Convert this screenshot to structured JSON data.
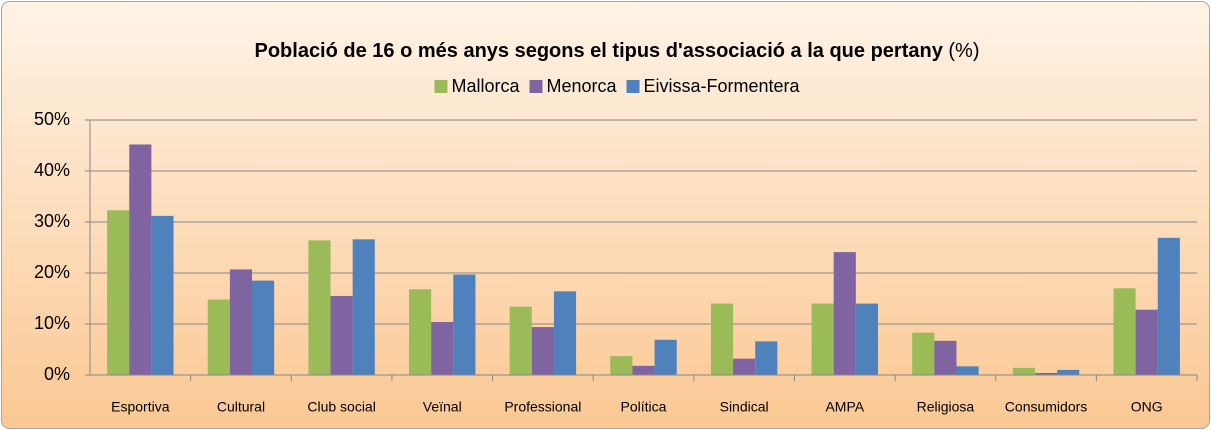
{
  "chart_data": {
    "type": "bar",
    "title": "Població de 16 o més anys segons el tipus d'associació a la que pertany",
    "title_unit": "(%)",
    "categories": [
      "Esportiva",
      "Cultural",
      "Club social",
      "Veïnal",
      "Professional",
      "Política",
      "Sindical",
      "AMPA",
      "Religiosa",
      "Consumidors",
      "ONG"
    ],
    "series": [
      {
        "name": "Mallorca",
        "color": "#9bbb59",
        "values": [
          32.3,
          14.8,
          26.4,
          16.8,
          13.4,
          3.7,
          14.0,
          14.0,
          8.3,
          1.4,
          17.0
        ]
      },
      {
        "name": "Menorca",
        "color": "#8064a2",
        "values": [
          45.2,
          20.7,
          15.5,
          10.4,
          9.4,
          1.8,
          3.2,
          24.1,
          6.7,
          0.4,
          12.8
        ]
      },
      {
        "name": "Eivissa-Formentera",
        "color": "#4f81bd",
        "values": [
          31.2,
          18.5,
          26.6,
          19.7,
          16.4,
          6.9,
          6.6,
          14.0,
          1.7,
          1.0,
          26.9
        ]
      }
    ],
    "ylim": [
      0,
      50
    ],
    "yticks": [
      {
        "value": 0,
        "label": "0%"
      },
      {
        "value": 10,
        "label": "10%"
      },
      {
        "value": 20,
        "label": "20%"
      },
      {
        "value": 30,
        "label": "30%"
      },
      {
        "value": 40,
        "label": "40%"
      },
      {
        "value": 50,
        "label": "50%"
      }
    ],
    "grid": true,
    "legend": "top"
  }
}
